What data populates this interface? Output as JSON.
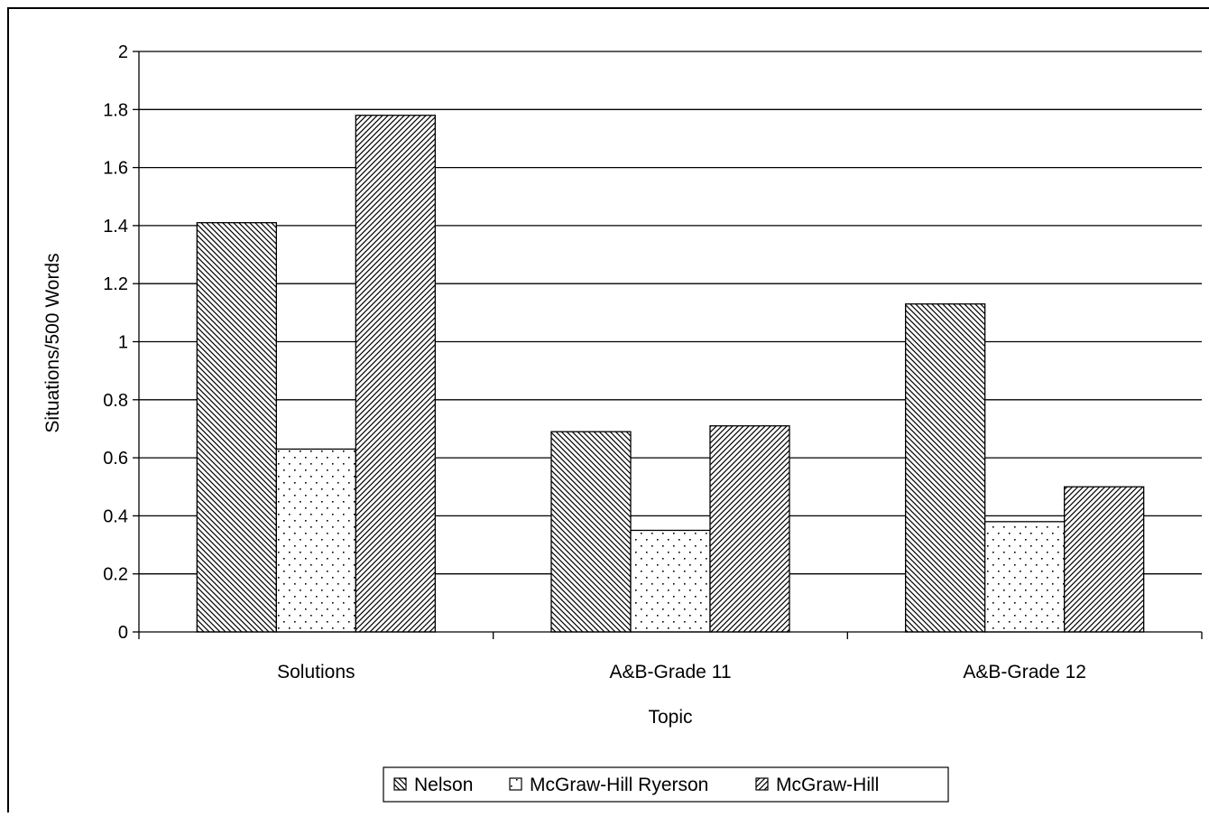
{
  "chart_data": {
    "type": "bar",
    "title": "",
    "xlabel": "Topic",
    "ylabel": "Situations/500 Words",
    "categories": [
      "Solutions",
      "A&B-Grade 11",
      "A&B-Grade 12"
    ],
    "series": [
      {
        "name": "Nelson",
        "values": [
          1.41,
          0.69,
          1.13
        ],
        "pattern": "back-diagonal"
      },
      {
        "name": "McGraw-Hill Ryerson",
        "values": [
          0.63,
          0.35,
          0.38
        ],
        "pattern": "dots"
      },
      {
        "name": "McGraw-Hill",
        "values": [
          1.78,
          0.71,
          0.5
        ],
        "pattern": "forward-diagonal"
      }
    ],
    "ylim": [
      0,
      2
    ],
    "yticks": [
      "0",
      "0.2",
      "0.4",
      "0.6",
      "0.8",
      "1",
      "1.2",
      "1.4",
      "1.6",
      "1.8",
      "2"
    ],
    "grid": true,
    "legend_position": "bottom"
  }
}
